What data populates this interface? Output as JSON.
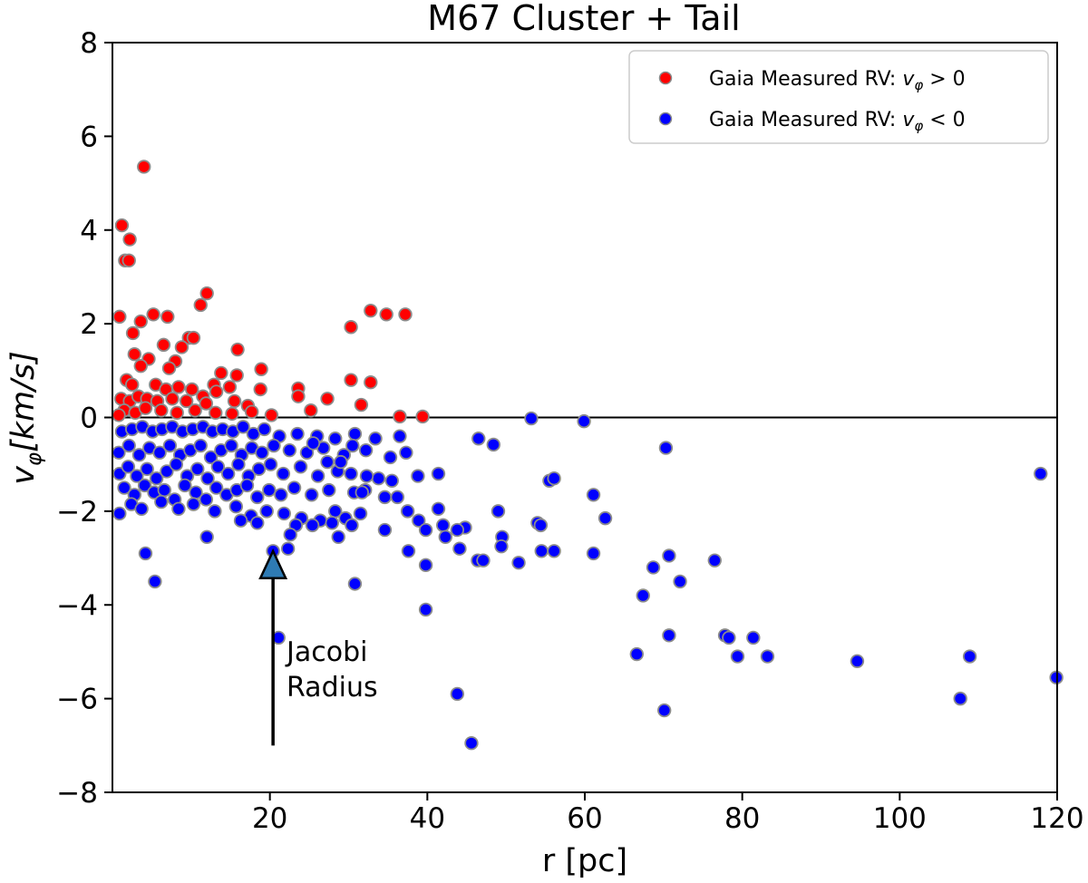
{
  "chart_data": {
    "type": "scatter",
    "title": "M67 Cluster + Tail",
    "xlabel": "r [pc]",
    "ylabel": {
      "main": "v",
      "sub": "φ",
      "rest": "[km/s]"
    },
    "xlim": [
      0,
      120
    ],
    "ylim": [
      -8,
      8
    ],
    "xticks": [
      20,
      40,
      60,
      80,
      100,
      120
    ],
    "yticks": [
      8,
      6,
      4,
      2,
      0,
      -2,
      -4,
      -6,
      -8
    ],
    "xtick_labels": [
      "20",
      "40",
      "60",
      "80",
      "100",
      "120"
    ],
    "ytick_labels": [
      "8",
      "6",
      "4",
      "2",
      "0",
      "−2",
      "−4",
      "−6",
      "−8"
    ],
    "hline": 0,
    "legend": {
      "position": "top-right",
      "entries": [
        {
          "label_prefix": "Gaia Measured RV: ",
          "label_var": "v",
          "label_sub": "φ",
          "label_suffix": " > 0",
          "color": "#ff0000"
        },
        {
          "label_prefix": "Gaia Measured RV: ",
          "label_var": "v",
          "label_sub": "φ",
          "label_suffix": " < 0",
          "color": "#0000ff"
        }
      ]
    },
    "annotation": {
      "line1": "Jacobi",
      "line2": "Radius",
      "x": 20.4,
      "y_tip": -2.85,
      "y_tail": -7.0,
      "color": "#2e7bb4"
    },
    "series": [
      {
        "name": "Gaia Measured RV: v_phi > 0",
        "color": "#ff0000",
        "points": [
          [
            4,
            5.35
          ],
          [
            1.2,
            4.1
          ],
          [
            2.2,
            3.8
          ],
          [
            1.6,
            3.35
          ],
          [
            2.1,
            3.35
          ],
          [
            12,
            2.65
          ],
          [
            11.2,
            2.4
          ],
          [
            32.8,
            2.28
          ],
          [
            34.8,
            2.2
          ],
          [
            37.2,
            2.2
          ],
          [
            0.9,
            2.15
          ],
          [
            5.2,
            2.2
          ],
          [
            3.6,
            2.05
          ],
          [
            7,
            2.15
          ],
          [
            30.3,
            1.93
          ],
          [
            2.6,
            1.8
          ],
          [
            15.9,
            1.45
          ],
          [
            6.5,
            1.55
          ],
          [
            9.7,
            1.7
          ],
          [
            8.8,
            1.5
          ],
          [
            10.3,
            1.7
          ],
          [
            2.8,
            1.35
          ],
          [
            4.6,
            1.25
          ],
          [
            8,
            1.2
          ],
          [
            7.2,
            1.05
          ],
          [
            13.8,
            0.95
          ],
          [
            3.6,
            1.1
          ],
          [
            18.9,
            1.03
          ],
          [
            15.8,
            0.9
          ],
          [
            30.3,
            0.8
          ],
          [
            32.8,
            0.75
          ],
          [
            12.9,
            0.7
          ],
          [
            1.8,
            0.8
          ],
          [
            2.5,
            0.7
          ],
          [
            5.5,
            0.7
          ],
          [
            6.8,
            0.6
          ],
          [
            8.4,
            0.65
          ],
          [
            10.1,
            0.6
          ],
          [
            11.5,
            0.45
          ],
          [
            13.2,
            0.55
          ],
          [
            14.9,
            0.65
          ],
          [
            18.8,
            0.6
          ],
          [
            23.6,
            0.62
          ],
          [
            1.1,
            0.4
          ],
          [
            2.2,
            0.35
          ],
          [
            3.3,
            0.45
          ],
          [
            4.4,
            0.4
          ],
          [
            5.7,
            0.35
          ],
          [
            7.6,
            0.4
          ],
          [
            9.4,
            0.35
          ],
          [
            11.9,
            0.3
          ],
          [
            15.5,
            0.35
          ],
          [
            17.2,
            0.25
          ],
          [
            23.6,
            0.45
          ],
          [
            27.3,
            0.4
          ],
          [
            31.6,
            0.27
          ],
          [
            1.5,
            0.15
          ],
          [
            2.9,
            0.1
          ],
          [
            4.2,
            0.2
          ],
          [
            6.2,
            0.15
          ],
          [
            8.2,
            0.1
          ],
          [
            10.5,
            0.15
          ],
          [
            13.1,
            0.1
          ],
          [
            15.2,
            0.08
          ],
          [
            17.7,
            0.12
          ],
          [
            20.2,
            0.05
          ],
          [
            25.2,
            0.15
          ],
          [
            39.4,
            0.02
          ],
          [
            36.5,
            0.02
          ],
          [
            0.8,
            0.05
          ]
        ]
      },
      {
        "name": "Gaia Measured RV: v_phi < 0",
        "color": "#0000ff",
        "points": [
          [
            53.2,
            -0.02
          ],
          [
            59.9,
            -0.08
          ],
          [
            70.3,
            -0.65
          ],
          [
            117.9,
            -1.2
          ],
          [
            46.5,
            -0.45
          ],
          [
            48.4,
            -0.58
          ],
          [
            41.4,
            -1.2
          ],
          [
            38.8,
            -1.25
          ],
          [
            55.5,
            -1.35
          ],
          [
            56.1,
            -1.3
          ],
          [
            61.1,
            -1.65
          ],
          [
            62.6,
            -2.15
          ],
          [
            49,
            -2
          ],
          [
            54,
            -2.25
          ],
          [
            54.4,
            -2.3
          ],
          [
            49.5,
            -2.55
          ],
          [
            49.4,
            -2.75
          ],
          [
            44.8,
            -2.35
          ],
          [
            43.8,
            -2.4
          ],
          [
            42,
            -2.3
          ],
          [
            41.4,
            -1.95
          ],
          [
            44.1,
            -2.8
          ],
          [
            46.4,
            -3.05
          ],
          [
            47.1,
            -3.05
          ],
          [
            51.6,
            -3.1
          ],
          [
            54.5,
            -2.85
          ],
          [
            56.1,
            -2.85
          ],
          [
            61.1,
            -2.9
          ],
          [
            68.7,
            -3.2
          ],
          [
            70.7,
            -2.95
          ],
          [
            72.1,
            -3.5
          ],
          [
            67.4,
            -3.8
          ],
          [
            76.5,
            -3.05
          ],
          [
            77.8,
            -4.65
          ],
          [
            78.3,
            -4.7
          ],
          [
            81.4,
            -4.7
          ],
          [
            70.7,
            -4.65
          ],
          [
            66.6,
            -5.05
          ],
          [
            79.4,
            -5.1
          ],
          [
            83.2,
            -5.1
          ],
          [
            94.6,
            -5.2
          ],
          [
            108.9,
            -5.1
          ],
          [
            119.9,
            -5.55
          ],
          [
            107.7,
            -6
          ],
          [
            43.8,
            -5.9
          ],
          [
            45.6,
            -6.95
          ],
          [
            70.1,
            -6.25
          ],
          [
            39.8,
            -4.1
          ],
          [
            30.8,
            -3.55
          ],
          [
            21.1,
            -4.7
          ],
          [
            5.4,
            -3.5
          ],
          [
            4.2,
            -2.9
          ],
          [
            12,
            -2.55
          ],
          [
            20.4,
            -2.85
          ],
          [
            22.3,
            -2.8
          ],
          [
            1.2,
            -0.3
          ],
          [
            2.5,
            -0.25
          ],
          [
            3.8,
            -0.2
          ],
          [
            5.1,
            -0.3
          ],
          [
            6.3,
            -0.25
          ],
          [
            7.6,
            -0.2
          ],
          [
            8.9,
            -0.3
          ],
          [
            10.2,
            -0.25
          ],
          [
            11.5,
            -0.2
          ],
          [
            12.7,
            -0.3
          ],
          [
            14,
            -0.25
          ],
          [
            15.3,
            -0.3
          ],
          [
            16.6,
            -0.2
          ],
          [
            17.9,
            -0.35
          ],
          [
            19.3,
            -0.25
          ],
          [
            21.2,
            -0.4
          ],
          [
            23.5,
            -0.35
          ],
          [
            26,
            -0.4
          ],
          [
            28.3,
            -0.45
          ],
          [
            30.8,
            -0.35
          ],
          [
            33.4,
            -0.45
          ],
          [
            36.5,
            -0.4
          ],
          [
            0.8,
            -0.75
          ],
          [
            2.1,
            -0.6
          ],
          [
            3.4,
            -0.8
          ],
          [
            4.7,
            -0.65
          ],
          [
            6,
            -0.75
          ],
          [
            7.3,
            -0.6
          ],
          [
            8.6,
            -0.8
          ],
          [
            9.9,
            -0.7
          ],
          [
            11.2,
            -0.6
          ],
          [
            12.5,
            -0.85
          ],
          [
            13.8,
            -0.7
          ],
          [
            15.1,
            -0.6
          ],
          [
            16.4,
            -0.8
          ],
          [
            17.7,
            -0.65
          ],
          [
            19,
            -0.75
          ],
          [
            20.5,
            -0.6
          ],
          [
            22.5,
            -0.7
          ],
          [
            24.7,
            -0.75
          ],
          [
            26.8,
            -0.65
          ],
          [
            29.4,
            -0.8
          ],
          [
            32.2,
            -0.7
          ],
          [
            35.3,
            -0.85
          ],
          [
            37.3,
            -0.75
          ],
          [
            0.9,
            -1.2
          ],
          [
            2,
            -1.05
          ],
          [
            3.1,
            -1.25
          ],
          [
            4.4,
            -1.1
          ],
          [
            5.6,
            -1.3
          ],
          [
            6.9,
            -1.15
          ],
          [
            8.1,
            -1.0
          ],
          [
            9.5,
            -1.25
          ],
          [
            10.8,
            -1.1
          ],
          [
            12.1,
            -1.3
          ],
          [
            13.4,
            -1.05
          ],
          [
            14.7,
            -1.2
          ],
          [
            16,
            -1.0
          ],
          [
            17.3,
            -1.25
          ],
          [
            18.6,
            -1.1
          ],
          [
            20.1,
            -1.0
          ],
          [
            21.7,
            -1.2
          ],
          [
            23.9,
            -1.05
          ],
          [
            26.1,
            -1.25
          ],
          [
            28.6,
            -1.15
          ],
          [
            30.3,
            -1.2
          ],
          [
            33.8,
            -1.3
          ],
          [
            35.5,
            -1.35
          ],
          [
            1.5,
            -1.5
          ],
          [
            2.8,
            -1.65
          ],
          [
            4.1,
            -1.45
          ],
          [
            5.3,
            -1.6
          ],
          [
            6.6,
            -1.55
          ],
          [
            7.9,
            -1.75
          ],
          [
            9.2,
            -1.45
          ],
          [
            10.6,
            -1.6
          ],
          [
            11.9,
            -1.75
          ],
          [
            13.2,
            -1.5
          ],
          [
            14.5,
            -1.65
          ],
          [
            15.8,
            -1.55
          ],
          [
            17.1,
            -1.45
          ],
          [
            18.4,
            -1.7
          ],
          [
            19.9,
            -1.55
          ],
          [
            21.4,
            -1.65
          ],
          [
            23.1,
            -1.5
          ],
          [
            25.3,
            -1.65
          ],
          [
            27.5,
            -1.55
          ],
          [
            30.7,
            -1.6
          ],
          [
            32.1,
            -1.55
          ],
          [
            34.6,
            -1.7
          ],
          [
            36.2,
            -1.7
          ],
          [
            0.9,
            -2.05
          ],
          [
            2.4,
            -1.85
          ],
          [
            3.7,
            -1.95
          ],
          [
            6.2,
            -1.8
          ],
          [
            8.4,
            -1.95
          ],
          [
            10.3,
            -1.85
          ],
          [
            13,
            -2.0
          ],
          [
            15.7,
            -1.9
          ],
          [
            17.6,
            -2.1
          ],
          [
            19.6,
            -2.0
          ],
          [
            21.8,
            -2.05
          ],
          [
            24,
            -2.15
          ],
          [
            26.4,
            -2.2
          ],
          [
            28.3,
            -2.0
          ],
          [
            29.6,
            -2.15
          ],
          [
            31.5,
            -2.05
          ],
          [
            16.3,
            -2.2
          ],
          [
            18.4,
            -2.25
          ],
          [
            23.3,
            -2.3
          ],
          [
            25.4,
            -2.3
          ],
          [
            27.9,
            -2.25
          ],
          [
            30.4,
            -2.3
          ],
          [
            34.6,
            -2.4
          ],
          [
            22.6,
            -2.5
          ],
          [
            28.7,
            -2.55
          ],
          [
            37.5,
            -2.0
          ],
          [
            38.9,
            -2.2
          ],
          [
            39.8,
            -2.4
          ],
          [
            37.6,
            -2.85
          ],
          [
            39.8,
            -3.15
          ],
          [
            42.3,
            -2.55
          ],
          [
            25.5,
            -0.55
          ],
          [
            27.3,
            -0.95
          ],
          [
            29,
            -0.95
          ],
          [
            30.5,
            -0.6
          ],
          [
            32.3,
            -1.25
          ],
          [
            31.7,
            -1.6
          ]
        ]
      }
    ]
  }
}
